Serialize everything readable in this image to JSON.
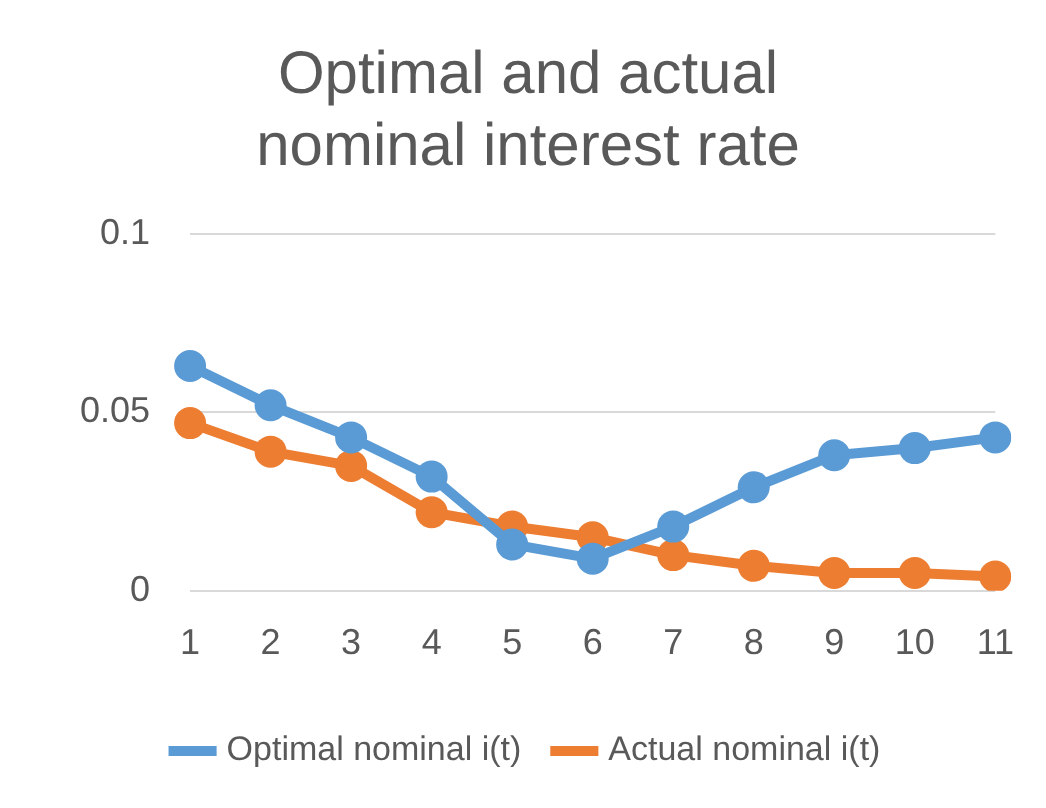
{
  "chart_data": {
    "type": "line",
    "title": "Optimal and actual nominal interest rate",
    "categories": [
      "1",
      "2",
      "3",
      "4",
      "5",
      "6",
      "7",
      "8",
      "9",
      "10",
      "11"
    ],
    "series": [
      {
        "name": "Optimal nominal i(t)",
        "color": "#5b9bd5",
        "values": [
          0.063,
          0.052,
          0.043,
          0.032,
          0.013,
          0.009,
          0.018,
          0.029,
          0.038,
          0.04,
          0.043
        ]
      },
      {
        "name": "Actual nominal i(t)",
        "color": "#ed7d31",
        "values": [
          0.047,
          0.039,
          0.035,
          0.022,
          0.018,
          0.015,
          0.01,
          0.007,
          0.005,
          0.005,
          0.004
        ]
      }
    ],
    "ylim": [
      0,
      0.1
    ],
    "yticks": [
      0,
      0.05,
      0.1
    ],
    "grid": "y",
    "legend": "bottom",
    "marker": "circle",
    "line_style": "solid"
  }
}
